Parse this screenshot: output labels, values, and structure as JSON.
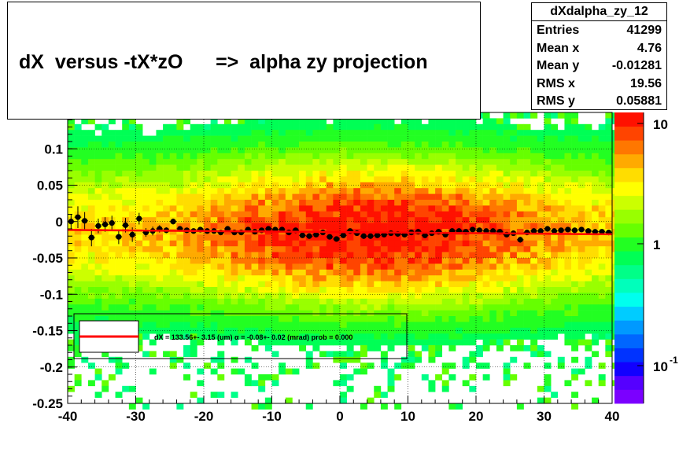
{
  "title": "dX  versus -tX*zO      =>  alpha zy projection",
  "stats": {
    "name": "dXdalpha_zy_12",
    "rows": [
      {
        "label": "Entries",
        "value": "41299"
      },
      {
        "label": "Mean x",
        "value": "4.76"
      },
      {
        "label": "Mean y",
        "value": "-0.01281"
      },
      {
        "label": "RMS x",
        "value": "19.56"
      },
      {
        "label": "RMS y",
        "value": "0.05881"
      }
    ]
  },
  "legend_text": "dX =  133.56+- 3.15 (um) α =  -0.08+- 0.02 (mrad) prob = 0.000",
  "colors": {
    "fit_line": "#ff0000",
    "points": "#000000",
    "palette": [
      "#7b00ff",
      "#5500ff",
      "#1100ff",
      "#0033ff",
      "#0066ff",
      "#0099ff",
      "#00ccff",
      "#00ffee",
      "#00ffbb",
      "#00ff88",
      "#00ff55",
      "#22ff22",
      "#66ff00",
      "#99ff00",
      "#ccff00",
      "#ffff00",
      "#ffdd00",
      "#ffaa00",
      "#ff7700",
      "#ff4400",
      "#ff1100"
    ]
  },
  "chart_data": {
    "type": "heatmap",
    "xlim": [
      -40,
      40
    ],
    "ylim": [
      -0.25,
      0.15
    ],
    "x_ticks": [
      -40,
      -30,
      -20,
      -10,
      0,
      10,
      20,
      30,
      40
    ],
    "y_ticks": [
      0.1,
      0.05,
      0,
      -0.05,
      -0.1,
      -0.15,
      -0.2,
      -0.25
    ],
    "y_tick_labels": [
      "0.1",
      "0.05",
      "0",
      "-0.05",
      "-0.1",
      "-0.15",
      "-0.2",
      "-0.25"
    ],
    "z_scale": "log",
    "z_ticks": [
      "10",
      "1",
      "10"
    ],
    "z_tick_exponents": [
      "",
      "",
      "-1"
    ],
    "grid": true,
    "profile": {
      "x": [
        -39.5,
        -38.5,
        -37.5,
        -36.5,
        -35.5,
        -34.5,
        -33.5,
        -32.5,
        -31.5,
        -30.5,
        -29.5,
        -28.5,
        -27.5,
        -26.5,
        -25.5,
        -24.5,
        -23.5,
        -22.5,
        -21.5,
        -20.5,
        -19.5,
        -18.5,
        -17.5,
        -16.5,
        -15.5,
        -14.5,
        -13.5,
        -12.5,
        -11.5,
        -10.5,
        -9.5,
        -8.5,
        -7.5,
        -6.5,
        -5.5,
        -4.5,
        -3.5,
        -2.5,
        -1.5,
        -0.5,
        0.5,
        1.5,
        2.5,
        3.5,
        4.5,
        5.5,
        6.5,
        7.5,
        8.5,
        9.5,
        10.5,
        11.5,
        12.5,
        13.5,
        14.5,
        15.5,
        16.5,
        17.5,
        18.5,
        19.5,
        20.5,
        21.5,
        22.5,
        23.5,
        24.5,
        25.5,
        26.5,
        27.5,
        28.5,
        29.5,
        30.5,
        31.5,
        32.5,
        33.5,
        34.5,
        35.5,
        36.5,
        37.5,
        38.5,
        39.5
      ],
      "y": [
        0.0,
        0.006,
        0.001,
        -0.022,
        -0.006,
        -0.004,
        -0.002,
        -0.021,
        -0.005,
        -0.018,
        0.004,
        -0.015,
        -0.013,
        -0.01,
        -0.012,
        0.0,
        -0.01,
        -0.012,
        -0.013,
        -0.011,
        -0.013,
        -0.013,
        -0.015,
        -0.01,
        -0.015,
        -0.015,
        -0.011,
        -0.014,
        -0.012,
        -0.01,
        -0.011,
        -0.011,
        -0.015,
        -0.012,
        -0.019,
        -0.02,
        -0.018,
        -0.015,
        -0.021,
        -0.024,
        -0.019,
        -0.013,
        -0.016,
        -0.02,
        -0.02,
        -0.019,
        -0.018,
        -0.016,
        -0.017,
        -0.018,
        -0.015,
        -0.014,
        -0.019,
        -0.016,
        -0.014,
        -0.018,
        -0.013,
        -0.013,
        -0.014,
        -0.011,
        -0.012,
        -0.013,
        -0.013,
        -0.014,
        -0.018,
        -0.016,
        -0.025,
        -0.015,
        -0.013,
        -0.013,
        -0.01,
        -0.013,
        -0.012,
        -0.011,
        -0.012,
        -0.011,
        -0.013,
        -0.014,
        -0.014,
        -0.015
      ],
      "yerr": [
        0.01,
        0.015,
        0.012,
        0.012,
        0.01,
        0.01,
        0.01,
        0.01,
        0.01,
        0.01,
        0.008,
        0.006,
        0.006,
        0.005,
        0.004,
        0.004,
        0.003,
        0.003,
        0.003,
        0.003,
        0.003,
        0.003,
        0.003,
        0.003,
        0.003,
        0.003,
        0.003,
        0.003,
        0.003,
        0.003,
        0.003,
        0.003,
        0.003,
        0.003,
        0.003,
        0.003,
        0.003,
        0.003,
        0.003,
        0.003,
        0.003,
        0.003,
        0.003,
        0.003,
        0.003,
        0.003,
        0.003,
        0.003,
        0.003,
        0.003,
        0.003,
        0.003,
        0.003,
        0.003,
        0.003,
        0.003,
        0.003,
        0.003,
        0.003,
        0.003,
        0.003,
        0.003,
        0.003,
        0.003,
        0.003,
        0.003,
        0.004,
        0.003,
        0.003,
        0.003,
        0.003,
        0.003,
        0.003,
        0.003,
        0.003,
        0.003,
        0.003,
        0.003,
        0.003,
        0.003
      ]
    },
    "fit": {
      "x": [
        -40,
        40
      ],
      "y": [
        -0.0115,
        -0.0175
      ]
    }
  }
}
